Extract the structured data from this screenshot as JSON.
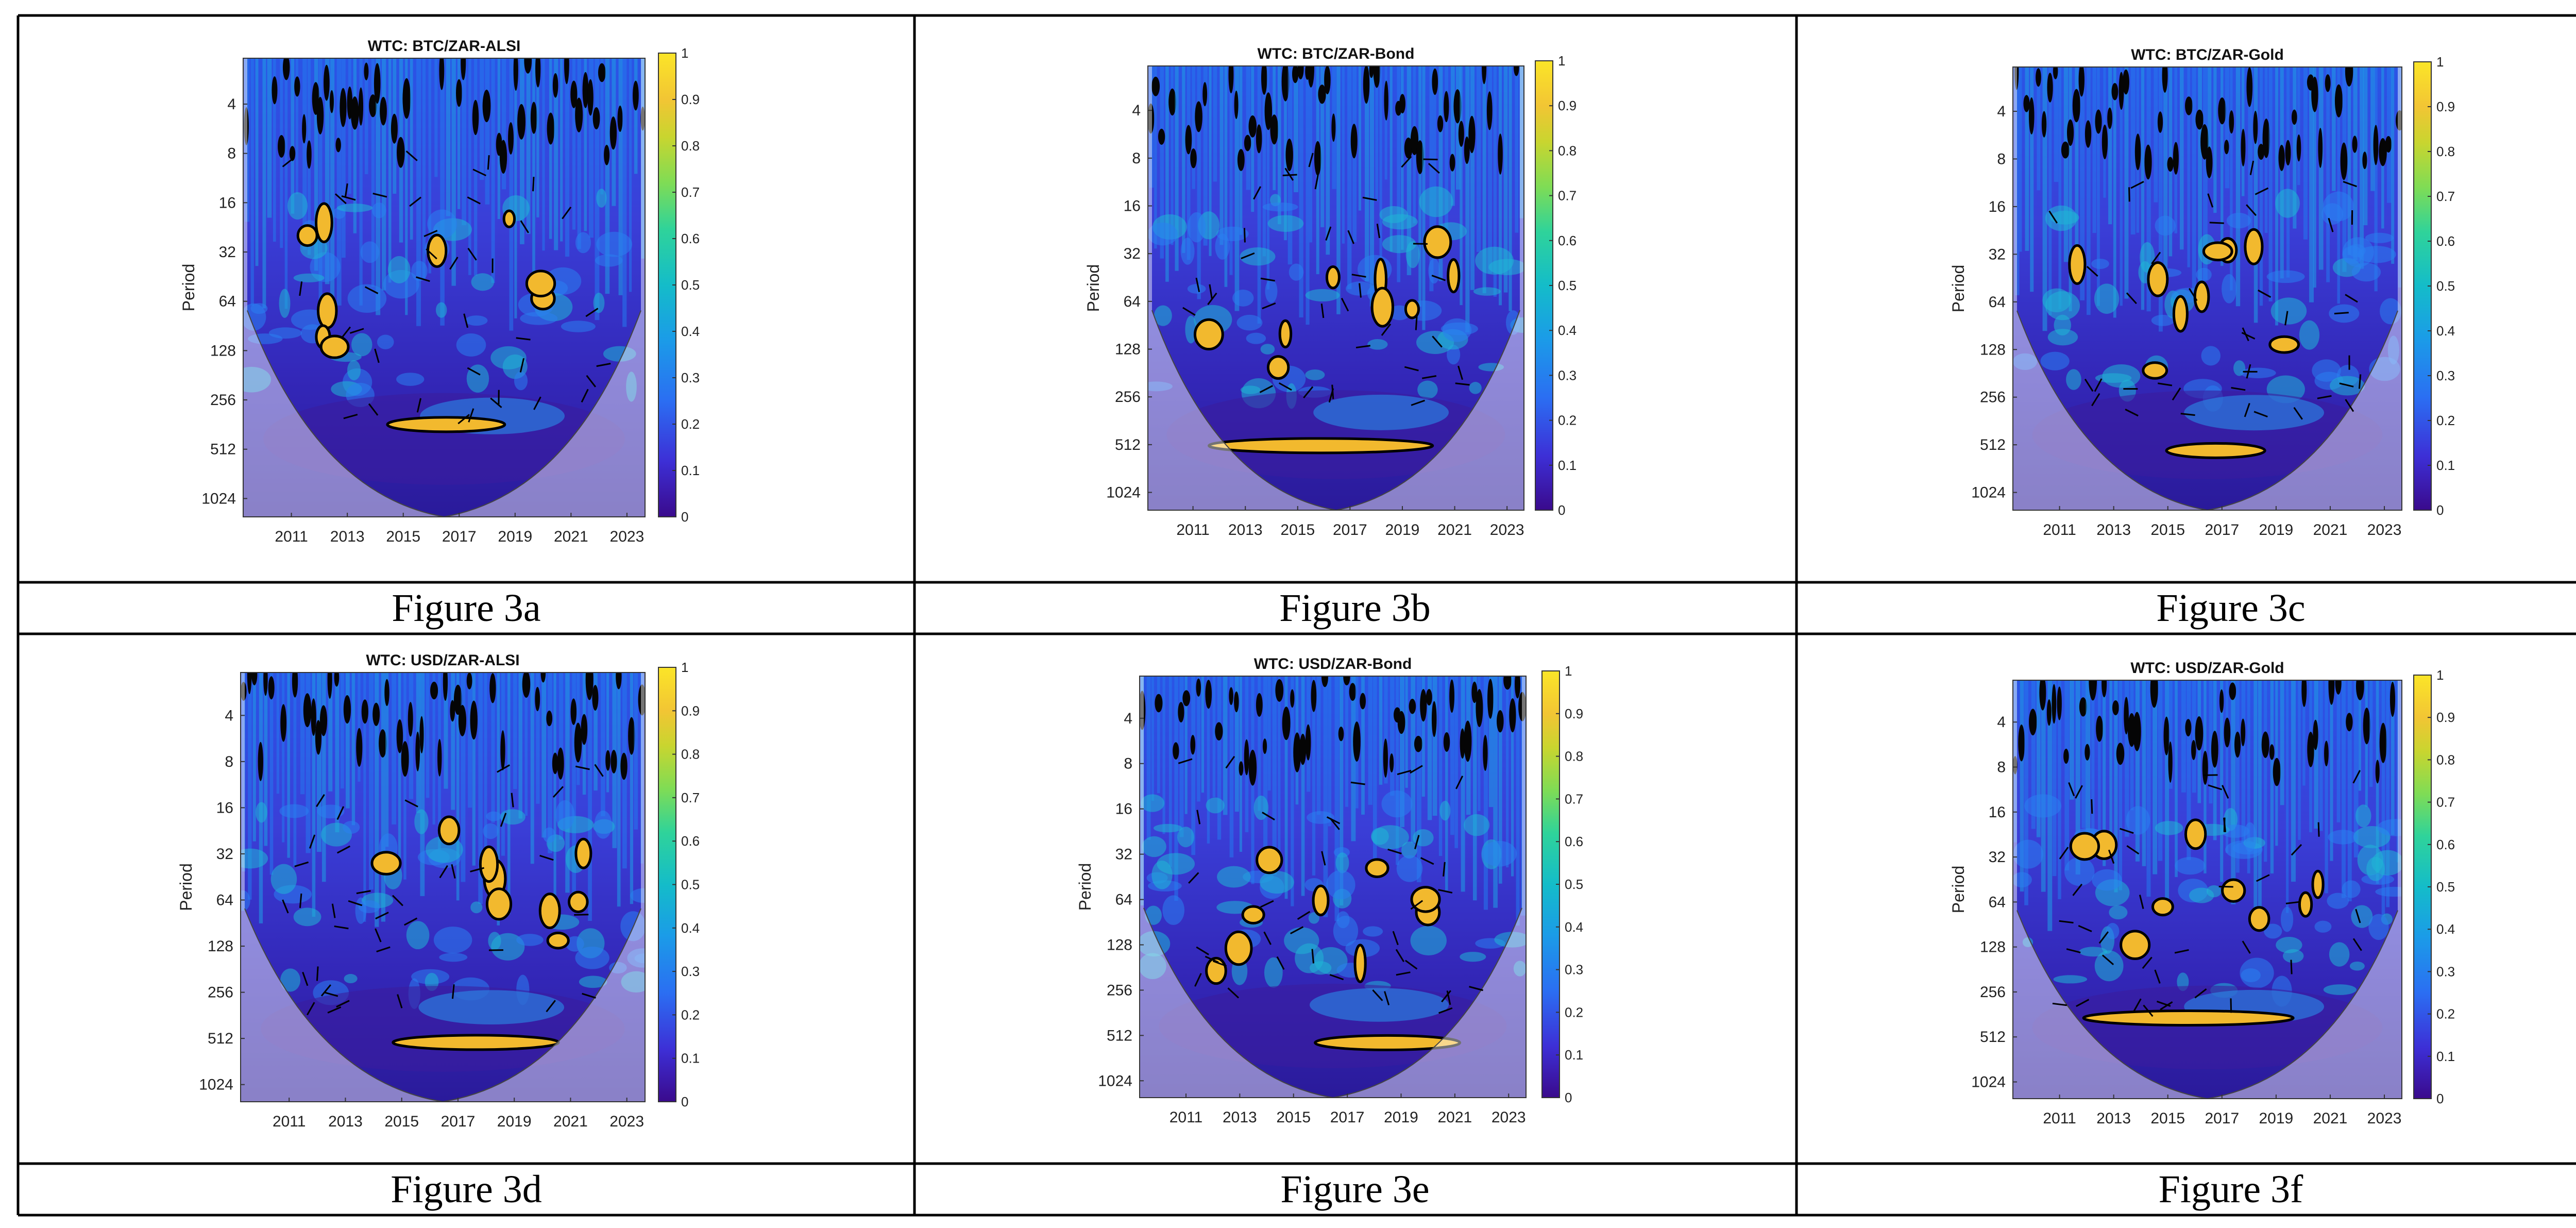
{
  "chart_data": [
    {
      "type": "heatmap",
      "title": "WTC: BTC/ZAR-ALSI",
      "caption": "Figure 3a",
      "ylabel": "Period",
      "x_ticks": [
        "2011",
        "2013",
        "2015",
        "2017",
        "2019",
        "2021",
        "2023"
      ],
      "y_ticks": [
        "4",
        "8",
        "16",
        "32",
        "64",
        "128",
        "256",
        "512",
        "1024"
      ],
      "y_scale": "log2",
      "colorbar_ticks": [
        "0",
        "0.1",
        "0.2",
        "0.3",
        "0.4",
        "0.5",
        "0.6",
        "0.7",
        "0.8",
        "0.9",
        "1"
      ],
      "colorbar_range": [
        0,
        1
      ]
    },
    {
      "type": "heatmap",
      "title": "WTC: BTC/ZAR-Bond",
      "caption": "Figure 3b",
      "ylabel": "Period",
      "x_ticks": [
        "2011",
        "2013",
        "2015",
        "2017",
        "2019",
        "2021",
        "2023"
      ],
      "y_ticks": [
        "4",
        "8",
        "16",
        "32",
        "64",
        "128",
        "256",
        "512",
        "1024"
      ],
      "y_scale": "log2",
      "colorbar_ticks": [
        "0",
        "0.1",
        "0.2",
        "0.3",
        "0.4",
        "0.5",
        "0.6",
        "0.7",
        "0.8",
        "0.9",
        "1"
      ],
      "colorbar_range": [
        0,
        1
      ]
    },
    {
      "type": "heatmap",
      "title": "WTC: BTC/ZAR-Gold",
      "caption": "Figure 3c",
      "ylabel": "Period",
      "x_ticks": [
        "2011",
        "2013",
        "2015",
        "2017",
        "2019",
        "2021",
        "2023"
      ],
      "y_ticks": [
        "4",
        "8",
        "16",
        "32",
        "64",
        "128",
        "256",
        "512",
        "1024"
      ],
      "y_scale": "log2",
      "colorbar_ticks": [
        "0",
        "0.1",
        "0.2",
        "0.3",
        "0.4",
        "0.5",
        "0.6",
        "0.7",
        "0.8",
        "0.9",
        "1"
      ],
      "colorbar_range": [
        0,
        1
      ]
    },
    {
      "type": "heatmap",
      "title": "WTC: USD/ZAR-ALSI",
      "caption": "Figure 3d",
      "ylabel": "Period",
      "x_ticks": [
        "2011",
        "2013",
        "2015",
        "2017",
        "2019",
        "2021",
        "2023"
      ],
      "y_ticks": [
        "4",
        "8",
        "16",
        "32",
        "64",
        "128",
        "256",
        "512",
        "1024"
      ],
      "y_scale": "log2",
      "colorbar_ticks": [
        "0",
        "0.1",
        "0.2",
        "0.3",
        "0.4",
        "0.5",
        "0.6",
        "0.7",
        "0.8",
        "0.9",
        "1"
      ],
      "colorbar_range": [
        0,
        1
      ]
    },
    {
      "type": "heatmap",
      "title": "WTC: USD/ZAR-Bond",
      "caption": "Figure 3e",
      "ylabel": "Period",
      "x_ticks": [
        "2011",
        "2013",
        "2015",
        "2017",
        "2019",
        "2021",
        "2023"
      ],
      "y_ticks": [
        "4",
        "8",
        "16",
        "32",
        "64",
        "128",
        "256",
        "512",
        "1024"
      ],
      "y_scale": "log2",
      "colorbar_ticks": [
        "0",
        "0.1",
        "0.2",
        "0.3",
        "0.4",
        "0.5",
        "0.6",
        "0.7",
        "0.8",
        "0.9",
        "1"
      ],
      "colorbar_range": [
        0,
        1
      ]
    },
    {
      "type": "heatmap",
      "title": "WTC: USD/ZAR-Gold",
      "caption": "Figure 3f",
      "ylabel": "Period",
      "x_ticks": [
        "2011",
        "2013",
        "2015",
        "2017",
        "2019",
        "2021",
        "2023"
      ],
      "y_ticks": [
        "4",
        "8",
        "16",
        "32",
        "64",
        "128",
        "256",
        "512",
        "1024"
      ],
      "y_scale": "log2",
      "colorbar_ticks": [
        "0",
        "0.1",
        "0.2",
        "0.3",
        "0.4",
        "0.5",
        "0.6",
        "0.7",
        "0.8",
        "0.9",
        "1"
      ],
      "colorbar_range": [
        0,
        1
      ]
    }
  ],
  "colormap": [
    "#3a0a8c",
    "#3d2fd6",
    "#2b6ef2",
    "#1b9be8",
    "#14bcc9",
    "#2fd39a",
    "#7fdc55",
    "#c9d52f",
    "#f2c534",
    "#fbe528"
  ]
}
